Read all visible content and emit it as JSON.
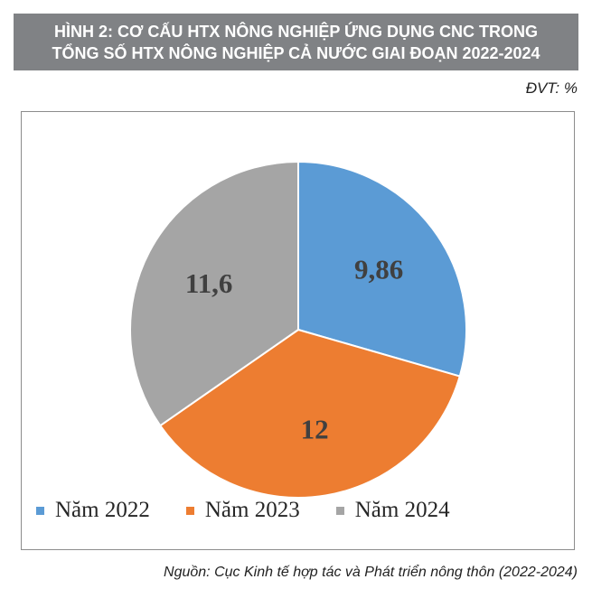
{
  "header": {
    "title_line1": "HÌNH 2: CƠ CẤU HTX NÔNG NGHIỆP ỨNG DỤNG CNC TRONG",
    "title_line2": "TỔNG SỐ HTX NÔNG NGHIỆP CẢ NƯỚC GIAI ĐOẠN 2022-2024",
    "unit": "ĐVT: %"
  },
  "chart_data": {
    "type": "pie",
    "categories": [
      "Năm 2022",
      "Năm 2023",
      "Năm 2024"
    ],
    "values": [
      9.86,
      12,
      11.6
    ],
    "data_labels": [
      "9,86",
      "12",
      "11,6"
    ],
    "colors": [
      "#5b9bd5",
      "#ed7d31",
      "#a5a5a5"
    ],
    "label_colors": [
      "#404040",
      "#404040",
      "#404040"
    ],
    "start_angle_deg": 0,
    "direction": "clockwise",
    "legend_position": "bottom"
  },
  "legend": {
    "items": [
      {
        "label": "Năm 2022",
        "color": "#5b9bd5"
      },
      {
        "label": "Năm 2023",
        "color": "#ed7d31"
      },
      {
        "label": "Năm 2024",
        "color": "#a5a5a5"
      }
    ]
  },
  "footer": {
    "source": "Nguồn: Cục Kinh tế hợp tác và Phát triển nông thôn (2022-2024)"
  }
}
